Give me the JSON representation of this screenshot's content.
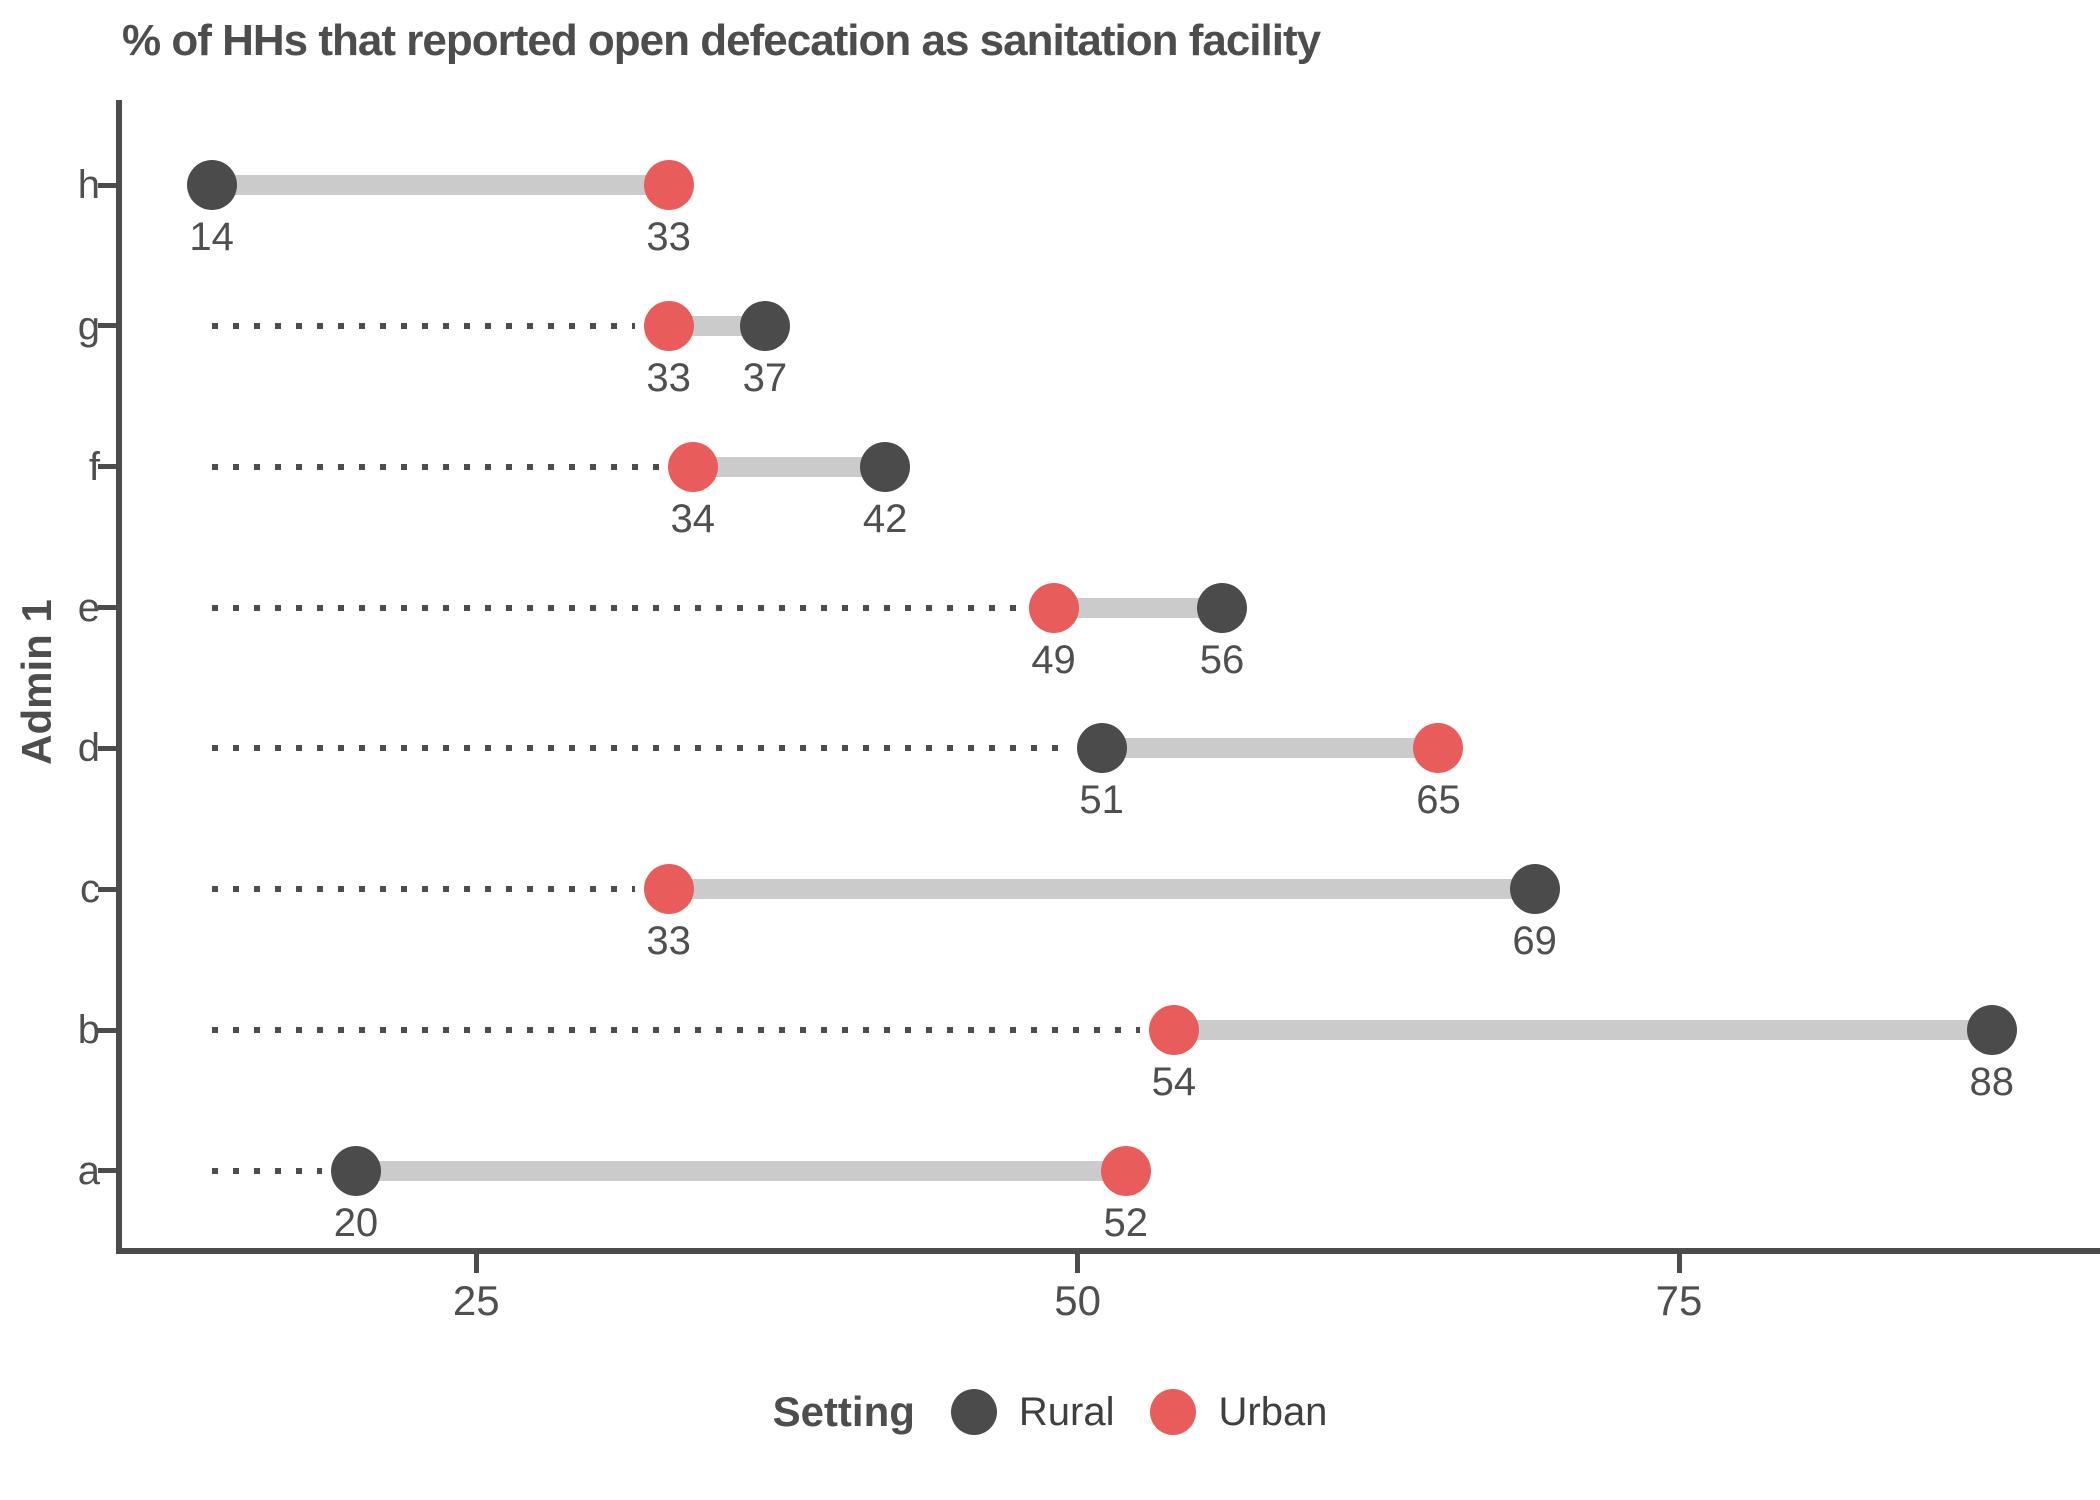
{
  "title": "% of HHs that reported open defecation as sanitation facility",
  "chart_data": {
    "type": "dumbbell",
    "title": "% of HHs that reported open defecation as sanitation facility",
    "xlabel": "",
    "ylabel": "Admin 1",
    "x_ticks": [
      "25",
      "50",
      "75"
    ],
    "x_domain": [
      10.15,
      92.5
    ],
    "grid": false,
    "leader_lines": "dotted from global minimum value to each row minimum",
    "categories_top_to_bottom": [
      "h",
      "g",
      "f",
      "e",
      "d",
      "c",
      "b",
      "a"
    ],
    "series_colors": {
      "Rural": "#4b4b4b",
      "Urban": "#e95c5c"
    },
    "bar_color": "#cbcbcb",
    "rows": [
      {
        "category": "h",
        "rural": 14,
        "urban": 33
      },
      {
        "category": "g",
        "rural": 37,
        "urban": 33
      },
      {
        "category": "f",
        "rural": 42,
        "urban": 34
      },
      {
        "category": "e",
        "rural": 56,
        "urban": 49
      },
      {
        "category": "d",
        "rural": 51,
        "urban": 65
      },
      {
        "category": "c",
        "rural": 69,
        "urban": 33
      },
      {
        "category": "b",
        "rural": 88,
        "urban": 54
      },
      {
        "category": "a",
        "rural": 20,
        "urban": 52
      }
    ]
  },
  "legend": {
    "title": "Setting",
    "position": "bottom-center",
    "items": [
      {
        "label": "Rural",
        "color": "#4b4b4b"
      },
      {
        "label": "Urban",
        "color": "#e95c5c"
      }
    ]
  }
}
